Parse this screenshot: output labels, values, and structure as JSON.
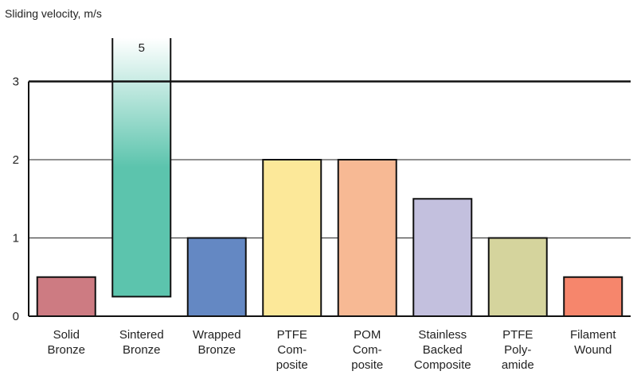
{
  "chart_data": {
    "type": "bar",
    "ylabel": "Sliding velocity, m/s",
    "ylim": [
      0,
      3
    ],
    "yticks": [
      "0",
      "1",
      "2",
      "3"
    ],
    "grid": true,
    "categories": [
      [
        "Solid",
        "Bronze"
      ],
      [
        "Sintered",
        "Bronze"
      ],
      [
        "Wrapped",
        "Bronze"
      ],
      [
        "PTFE",
        "Com-",
        "posite"
      ],
      [
        "POM",
        "Com-",
        "posite"
      ],
      [
        "Stainless",
        "Backed",
        "Composite"
      ],
      [
        "PTFE",
        "Poly-",
        "amide"
      ],
      [
        "Filament",
        "Wound"
      ]
    ],
    "bars": [
      {
        "low": 0,
        "high": 0.5,
        "color": "#cd7b82"
      },
      {
        "low": 0.25,
        "high": 5,
        "color": "#5cc4ad",
        "overflow": true,
        "label": "5"
      },
      {
        "low": 0,
        "high": 1,
        "color": "#6488c3"
      },
      {
        "low": 0,
        "high": 2,
        "color": "#fce899"
      },
      {
        "low": 0,
        "high": 2,
        "color": "#f7b994"
      },
      {
        "low": 0,
        "high": 1.5,
        "color": "#c3c0de"
      },
      {
        "low": 0,
        "high": 1,
        "color": "#d5d49d"
      },
      {
        "low": 0,
        "high": 0.5,
        "color": "#f6866c"
      }
    ]
  }
}
